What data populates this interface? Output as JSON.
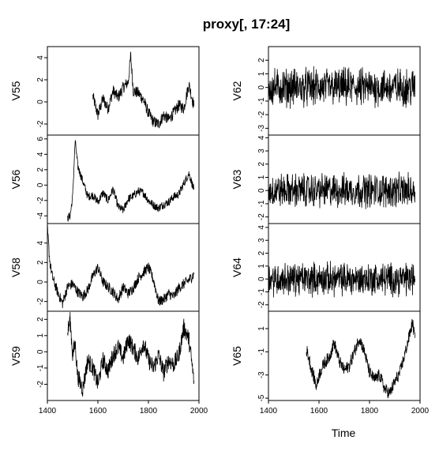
{
  "chart_data": {
    "type": "line",
    "title": "proxy[, 17:24]",
    "xlabel": "Time",
    "xlim": [
      1400,
      2000
    ],
    "xticks": [
      1400,
      1600,
      1800,
      2000
    ],
    "xtick_labels": [
      "1400",
      "1600",
      "1800",
      "2000"
    ],
    "grid": false,
    "columns": [
      {
        "name": "V55",
        "ylim": [
          -3,
          5
        ],
        "yticks": [
          -2,
          0,
          2,
          4
        ],
        "ytick_labels": [
          "-2",
          "0",
          "2",
          "4"
        ],
        "x": [
          1580,
          1600,
          1620,
          1640,
          1660,
          1680,
          1700,
          1720,
          1730,
          1740,
          1760,
          1780,
          1800,
          1820,
          1840,
          1860,
          1880,
          1900,
          1920,
          1940,
          1960,
          1980
        ],
        "y": [
          0.5,
          -1.2,
          0.3,
          -0.6,
          1.0,
          0.4,
          1.3,
          1.8,
          4.2,
          1.0,
          0.8,
          0.2,
          -1.0,
          -1.8,
          -2.0,
          -1.2,
          -1.6,
          -1.0,
          -0.3,
          -0.6,
          1.6,
          -0.4
        ]
      },
      {
        "name": "V56",
        "ylim": [
          -5,
          6.5
        ],
        "yticks": [
          -4,
          -2,
          0,
          2,
          4,
          6
        ],
        "ytick_labels": [
          "-4",
          "-2",
          "0",
          "2",
          "4",
          "6"
        ],
        "x": [
          1480,
          1490,
          1500,
          1510,
          1520,
          1540,
          1560,
          1580,
          1600,
          1620,
          1640,
          1660,
          1680,
          1700,
          1720,
          1740,
          1760,
          1780,
          1800,
          1820,
          1840,
          1860,
          1880,
          1900,
          1920,
          1940,
          1960,
          1970,
          1980
        ],
        "y": [
          -4.3,
          -4.0,
          -1.5,
          5.8,
          2.5,
          0.5,
          -1.5,
          -1.3,
          -2.2,
          -1.0,
          -2.0,
          -0.5,
          -2.8,
          -3.3,
          -1.8,
          -1.4,
          -0.8,
          -1.0,
          -2.0,
          -2.6,
          -3.0,
          -2.5,
          -2.2,
          -1.5,
          -1.2,
          0.2,
          1.5,
          0.5,
          -0.6
        ]
      },
      {
        "name": "V58",
        "ylim": [
          -3,
          6
        ],
        "yticks": [
          -2,
          0,
          2,
          4
        ],
        "ytick_labels": [
          "-2",
          "0",
          "2",
          "4"
        ],
        "x": [
          1400,
          1410,
          1420,
          1440,
          1460,
          1480,
          1500,
          1520,
          1540,
          1560,
          1580,
          1600,
          1620,
          1640,
          1660,
          1680,
          1700,
          1720,
          1740,
          1760,
          1780,
          1800,
          1820,
          1840,
          1860,
          1880,
          1900,
          1920,
          1940,
          1960,
          1980
        ],
        "y": [
          5.5,
          2.0,
          0.5,
          -1.0,
          -2.2,
          -0.5,
          -0.2,
          -1.0,
          -1.5,
          -0.8,
          0.6,
          1.5,
          0.0,
          -0.5,
          -1.0,
          -1.8,
          -0.5,
          -1.2,
          -0.6,
          0.4,
          1.0,
          1.5,
          0.2,
          -2.0,
          -1.8,
          -1.2,
          -1.5,
          -0.6,
          -0.2,
          0.2,
          0.8
        ]
      },
      {
        "name": "V59",
        "ylim": [
          -3,
          2.5
        ],
        "yticks": [
          -2,
          -1,
          0,
          1,
          2
        ],
        "ytick_labels": [
          "-2",
          "-1",
          "0",
          "1",
          "2"
        ],
        "x": [
          1480,
          1490,
          1500,
          1510,
          1520,
          1540,
          1560,
          1580,
          1600,
          1620,
          1640,
          1660,
          1680,
          1700,
          1720,
          1740,
          1760,
          1780,
          1800,
          1820,
          1840,
          1860,
          1880,
          1900,
          1920,
          1940,
          1960,
          1970,
          1980
        ],
        "y": [
          1.2,
          2.0,
          -0.2,
          0.5,
          -1.5,
          -2.3,
          -0.5,
          -1.0,
          -2.0,
          -0.5,
          -1.2,
          -0.2,
          0.3,
          -0.4,
          0.8,
          0.2,
          -0.4,
          0.6,
          -0.5,
          -1.0,
          -0.2,
          -1.3,
          -0.5,
          -0.8,
          -0.2,
          1.5,
          0.8,
          -0.5,
          -1.8
        ]
      },
      {
        "name": "V62",
        "ylim": [
          -3.5,
          3
        ],
        "yticks": [
          -3,
          -2,
          -1,
          0,
          1,
          2
        ],
        "ytick_labels": [
          "-3",
          "-2",
          "-1",
          "0",
          "1",
          "2"
        ],
        "x_start": 1400,
        "x_end": 1980,
        "noise_amplitude": 1.1
      },
      {
        "name": "V63",
        "ylim": [
          -2.5,
          4.2
        ],
        "yticks": [
          -2,
          -1,
          0,
          1,
          2,
          3,
          4
        ],
        "ytick_labels": [
          "-2",
          "-1",
          "0",
          "1",
          "2",
          "3",
          "4"
        ],
        "x_start": 1400,
        "x_end": 1980,
        "noise_amplitude": 1.0
      },
      {
        "name": "V64",
        "ylim": [
          -2.5,
          4.3
        ],
        "yticks": [
          -2,
          -1,
          0,
          1,
          2,
          3,
          4
        ],
        "ytick_labels": [
          "-2",
          "-1",
          "0",
          "1",
          "2",
          "3",
          "4"
        ],
        "x_start": 1400,
        "x_end": 1980,
        "noise_amplitude": 1.0
      },
      {
        "name": "V65",
        "ylim": [
          -5.2,
          2.5
        ],
        "yticks": [
          -5,
          -3,
          -1,
          1
        ],
        "ytick_labels": [
          "-5",
          "-3",
          "-1",
          "1"
        ],
        "x": [
          1550,
          1560,
          1570,
          1580,
          1590,
          1600,
          1620,
          1640,
          1660,
          1680,
          1700,
          1720,
          1740,
          1760,
          1780,
          1800,
          1820,
          1840,
          1860,
          1880,
          1900,
          1920,
          1940,
          1960,
          1970,
          1980
        ],
        "y": [
          -0.8,
          -1.5,
          -2.5,
          -3.2,
          -4.0,
          -3.0,
          -2.0,
          -1.5,
          -0.2,
          -1.8,
          -2.6,
          -2.2,
          -1.0,
          0.2,
          -1.0,
          -2.8,
          -3.4,
          -3.0,
          -4.2,
          -4.6,
          -3.6,
          -2.8,
          -1.2,
          0.6,
          1.5,
          0.2
        ]
      }
    ]
  }
}
